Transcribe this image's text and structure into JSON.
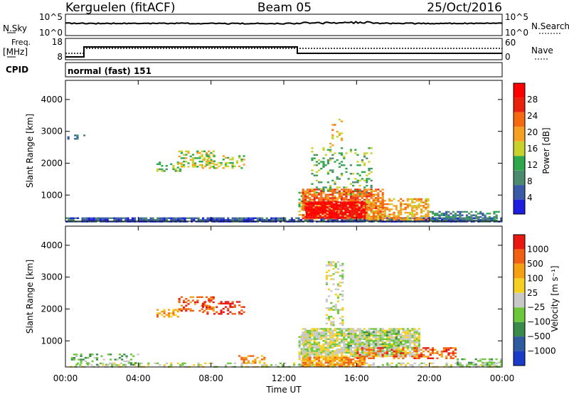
{
  "header": {
    "station": "Kerguelen (fitACF)",
    "beam": "Beam 05",
    "date": "25/Oct/2016"
  },
  "top_panel": {
    "left_label": "N.Sky",
    "left_ticks": [
      "10^5",
      "10^0"
    ],
    "right_label": "N.Search",
    "right_ticks": [
      "10^5",
      "10^0"
    ]
  },
  "freq_panel": {
    "left_label_1": "Freq.",
    "left_label_2": "[MHz]",
    "left_ticks": [
      "18",
      "8"
    ],
    "right_label": "Nave",
    "right_ticks": [
      "60",
      "0"
    ],
    "cpid_label": "CPID",
    "mode_text": "normal (fast) 151"
  },
  "colors": {
    "power": [
      "#1e1ee0",
      "#3a5aa8",
      "#4a8a6e",
      "#2ea84a",
      "#c8d22a",
      "#f5a020",
      "#f56a10",
      "#e8200c",
      "#ff0000"
    ],
    "velocity": [
      "#1a3ac8",
      "#2e5aa0",
      "#3a8a4a",
      "#6cc83a",
      "#c8c8c8",
      "#f5d020",
      "#f5a010",
      "#f06010",
      "#e81810"
    ]
  },
  "chart_data": [
    {
      "type": "heatmap",
      "name": "power",
      "ylabel": "Slant Range [km]",
      "yticks": [
        "4000",
        "3000",
        "2000",
        "1000"
      ],
      "ylim": [
        180,
        4600
      ],
      "colorbar_label": "Power [dB]",
      "colorbar_ticks": [
        "28",
        "24",
        "20",
        "16",
        "12",
        "8",
        "4"
      ],
      "colorbar_range": [
        0,
        32
      ],
      "regions": [
        {
          "t0": 0.0,
          "t1": 24.0,
          "r0": 180,
          "r1": 300,
          "level": 1,
          "density": 0.9
        },
        {
          "t0": 0.1,
          "t1": 1.0,
          "r0": 2750,
          "r1": 2900,
          "level": 2,
          "density": 0.3
        },
        {
          "t0": 5.0,
          "t1": 6.3,
          "r0": 1750,
          "r1": 2050,
          "level": 3,
          "density": 0.4
        },
        {
          "t0": 6.2,
          "t1": 8.2,
          "r0": 1900,
          "r1": 2400,
          "level": 4,
          "density": 0.45
        },
        {
          "t0": 7.5,
          "t1": 9.8,
          "r0": 1850,
          "r1": 2250,
          "level": 4,
          "density": 0.4
        },
        {
          "t0": 12.8,
          "t1": 13.4,
          "r0": 400,
          "r1": 1100,
          "level": 4,
          "density": 0.5
        },
        {
          "t0": 13.0,
          "t1": 17.5,
          "r0": 250,
          "r1": 1200,
          "level": 6,
          "density": 0.8
        },
        {
          "t0": 13.2,
          "t1": 16.5,
          "r0": 300,
          "r1": 800,
          "level": 8,
          "density": 0.85
        },
        {
          "t0": 16.5,
          "t1": 20.0,
          "r0": 250,
          "r1": 900,
          "level": 5,
          "density": 0.6
        },
        {
          "t0": 20.0,
          "t1": 23.8,
          "r0": 200,
          "r1": 500,
          "level": 2,
          "density": 0.55
        },
        {
          "t0": 13.5,
          "t1": 16.8,
          "r0": 1000,
          "r1": 2500,
          "level": 3,
          "density": 0.2
        },
        {
          "t0": 14.5,
          "t1": 15.2,
          "r0": 2500,
          "r1": 3500,
          "level": 5,
          "density": 0.25
        }
      ]
    },
    {
      "type": "heatmap",
      "name": "velocity",
      "ylabel": "Slant Range [km]",
      "yticks": [
        "4000",
        "3000",
        "2000",
        "1000"
      ],
      "ylim": [
        180,
        4600
      ],
      "xlabel": "Time UT",
      "xticks": [
        "00:00",
        "04:00",
        "08:00",
        "12:00",
        "16:00",
        "20:00",
        "00:00"
      ],
      "xlim": [
        0,
        24
      ],
      "colorbar_label": "Velocity [m s⁻¹]",
      "colorbar_ticks": [
        "1000",
        "500",
        "100",
        "25",
        "−25",
        "−100",
        "−500",
        "−1000"
      ],
      "regions": [
        {
          "t0": 0.0,
          "t1": 24.0,
          "r0": 180,
          "r1": 320,
          "level": 4,
          "density": 0.35
        },
        {
          "t0": 0.3,
          "t1": 4.0,
          "r0": 250,
          "r1": 600,
          "level": 3,
          "density": 0.3
        },
        {
          "t0": 5.0,
          "t1": 6.3,
          "r0": 1750,
          "r1": 2000,
          "level": 6,
          "density": 0.4
        },
        {
          "t0": 6.2,
          "t1": 8.2,
          "r0": 1950,
          "r1": 2400,
          "level": 7,
          "density": 0.45
        },
        {
          "t0": 7.5,
          "t1": 9.8,
          "r0": 1850,
          "r1": 2250,
          "level": 8,
          "density": 0.4
        },
        {
          "t0": 9.5,
          "t1": 11.0,
          "r0": 300,
          "r1": 550,
          "level": 6,
          "density": 0.5
        },
        {
          "t0": 12.8,
          "t1": 13.5,
          "r0": 200,
          "r1": 1200,
          "level": 4,
          "density": 0.6
        },
        {
          "t0": 13.0,
          "t1": 19.5,
          "r0": 500,
          "r1": 1400,
          "level": 4,
          "density": 0.85
        },
        {
          "t0": 13.0,
          "t1": 16.5,
          "r0": 200,
          "r1": 500,
          "level": 6,
          "density": 0.8
        },
        {
          "t0": 16.0,
          "t1": 21.5,
          "r0": 450,
          "r1": 800,
          "level": 7,
          "density": 0.5
        },
        {
          "t0": 15.5,
          "t1": 18.5,
          "r0": 800,
          "r1": 1300,
          "level": 3,
          "density": 0.35
        },
        {
          "t0": 21.5,
          "t1": 24.0,
          "r0": 200,
          "r1": 450,
          "level": 3,
          "density": 0.45
        },
        {
          "t0": 14.3,
          "t1": 15.3,
          "r0": 1500,
          "r1": 3500,
          "level": 4,
          "density": 0.3
        }
      ]
    }
  ]
}
